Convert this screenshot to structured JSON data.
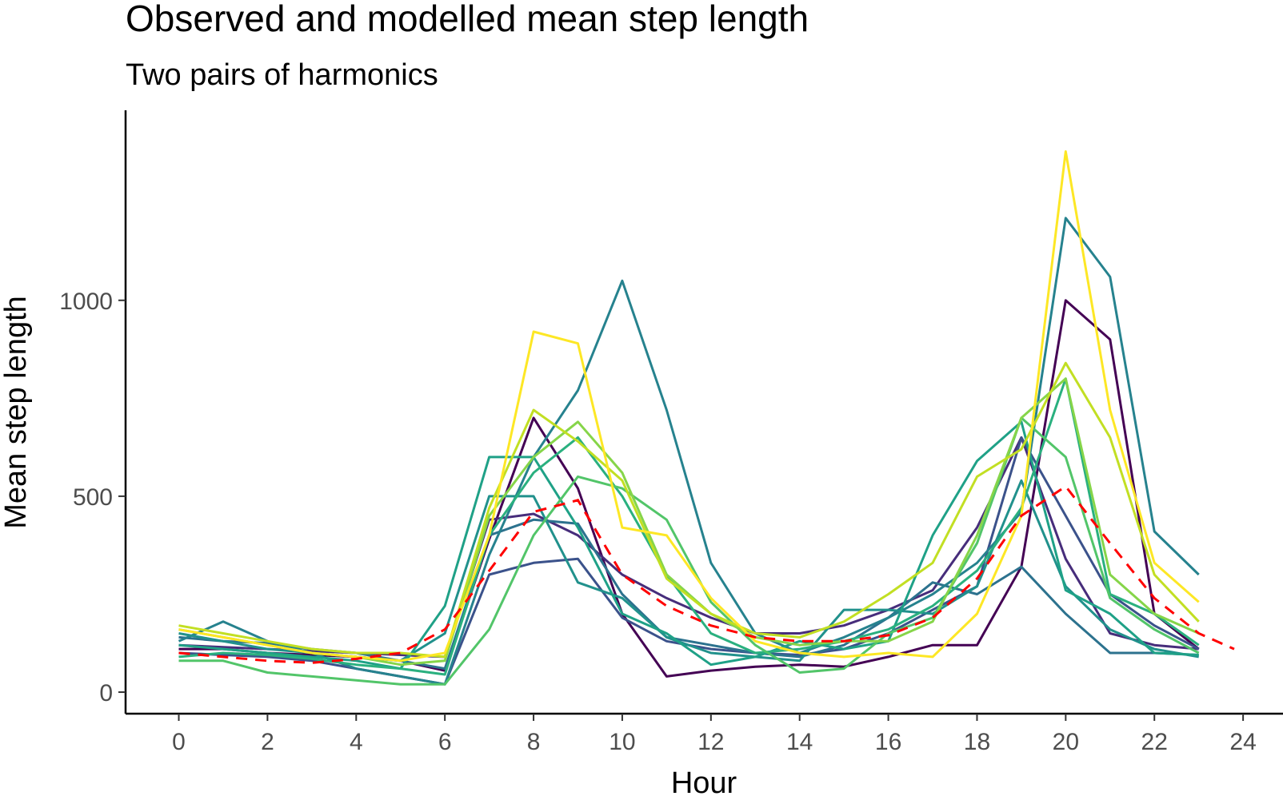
{
  "chart_data": {
    "type": "line",
    "title": "Observed and modelled mean step length",
    "subtitle": "Two pairs of harmonics",
    "xlabel": "Hour",
    "ylabel": "Mean step length",
    "xlim": [
      -1.2,
      24.9
    ],
    "ylim": [
      -55,
      1485
    ],
    "x_ticks": [
      0,
      2,
      4,
      6,
      8,
      10,
      12,
      14,
      16,
      18,
      20,
      22,
      24
    ],
    "y_ticks": [
      0,
      500,
      1000
    ],
    "legend": "none",
    "grid": false,
    "x": [
      0,
      1,
      2,
      3,
      4,
      5,
      6,
      7,
      8,
      9,
      10,
      11,
      12,
      13,
      14,
      15,
      16,
      17,
      18,
      19,
      20,
      21,
      22,
      23
    ],
    "series": [
      {
        "color": "#440154",
        "values": [
          110,
          110,
          100,
          95,
          90,
          80,
          55,
          390,
          700,
          520,
          200,
          40,
          55,
          65,
          70,
          65,
          90,
          120,
          120,
          320,
          1000,
          900,
          200,
          110
        ]
      },
      {
        "color": "#472d7b",
        "values": [
          120,
          115,
          110,
          105,
          100,
          95,
          90,
          440,
          455,
          400,
          300,
          240,
          190,
          150,
          150,
          170,
          210,
          260,
          420,
          650,
          340,
          150,
          120,
          110
        ]
      },
      {
        "color": "#3b528b",
        "values": [
          100,
          95,
          90,
          80,
          60,
          40,
          20,
          300,
          330,
          340,
          190,
          130,
          110,
          100,
          95,
          110,
          150,
          210,
          270,
          650,
          450,
          250,
          170,
          110
        ]
      },
      {
        "color": "#2c728e",
        "values": [
          140,
          130,
          125,
          110,
          100,
          80,
          60,
          400,
          440,
          430,
          250,
          140,
          120,
          100,
          90,
          120,
          190,
          280,
          250,
          320,
          200,
          100,
          100,
          95
        ]
      },
      {
        "color": "#26828e",
        "values": [
          130,
          180,
          130,
          100,
          60,
          40,
          20,
          350,
          600,
          770,
          1050,
          720,
          330,
          150,
          100,
          140,
          190,
          250,
          330,
          460,
          1210,
          1060,
          410,
          300
        ]
      },
      {
        "color": "#21918c",
        "values": [
          150,
          130,
          110,
          100,
          90,
          80,
          150,
          500,
          500,
          280,
          240,
          140,
          100,
          90,
          80,
          210,
          210,
          200,
          270,
          540,
          270,
          160,
          110,
          90
        ]
      },
      {
        "color": "#1fa187",
        "values": [
          120,
          110,
          100,
          90,
          80,
          60,
          220,
          600,
          600,
          420,
          200,
          150,
          70,
          90,
          130,
          110,
          130,
          400,
          590,
          690,
          260,
          200,
          100,
          95
        ]
      },
      {
        "color": "#2ab07f",
        "values": [
          90,
          100,
          95,
          85,
          70,
          60,
          45,
          400,
          560,
          650,
          500,
          300,
          150,
          100,
          110,
          130,
          160,
          220,
          310,
          470,
          800,
          250,
          200,
          120
        ]
      },
      {
        "color": "#52c569",
        "values": [
          80,
          80,
          50,
          40,
          30,
          20,
          20,
          160,
          400,
          550,
          520,
          440,
          230,
          120,
          50,
          60,
          150,
          190,
          380,
          700,
          600,
          240,
          160,
          100
        ]
      },
      {
        "color": "#86d549",
        "values": [
          160,
          140,
          120,
          100,
          90,
          70,
          80,
          450,
          600,
          690,
          560,
          300,
          200,
          140,
          120,
          130,
          130,
          180,
          400,
          700,
          800,
          300,
          200,
          150
        ]
      },
      {
        "color": "#c2df23",
        "values": [
          170,
          150,
          130,
          110,
          100,
          100,
          90,
          470,
          720,
          640,
          540,
          290,
          200,
          150,
          140,
          180,
          250,
          330,
          550,
          620,
          840,
          650,
          300,
          180
        ]
      },
      {
        "color": "#fde725",
        "values": [
          160,
          140,
          120,
          100,
          90,
          80,
          100,
          400,
          920,
          890,
          420,
          400,
          240,
          130,
          100,
          90,
          100,
          90,
          200,
          450,
          1380,
          720,
          330,
          230
        ]
      }
    ],
    "model": {
      "color": "#ff0000",
      "x": [
        0,
        1,
        2,
        3,
        4,
        5,
        6,
        7,
        8,
        9,
        10,
        11,
        12,
        13,
        14,
        15,
        16,
        17,
        18,
        19,
        20,
        21,
        22,
        23,
        23.8
      ],
      "values": [
        100,
        90,
        80,
        75,
        85,
        100,
        160,
        310,
        460,
        490,
        300,
        220,
        170,
        140,
        130,
        130,
        145,
        190,
        290,
        450,
        525,
        380,
        240,
        150,
        110
      ]
    }
  }
}
